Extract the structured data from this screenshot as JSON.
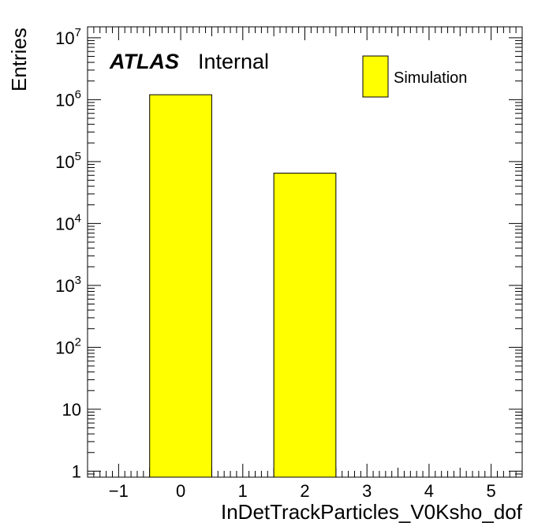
{
  "chart_data": {
    "type": "bar",
    "xlabel": "InDetTrackParticles_V0Ksho_dof",
    "ylabel": "Entries",
    "xlim": [
      -1.5,
      5.5
    ],
    "ylim": [
      0.8,
      15000000
    ],
    "log_y": true,
    "x_ticks": [
      "−1",
      "0",
      "1",
      "2",
      "3",
      "4",
      "5"
    ],
    "y_ticks": [
      {
        "label": "1",
        "sup": ""
      },
      {
        "label": "10",
        "sup": ""
      },
      {
        "label": "10",
        "sup": "2"
      },
      {
        "label": "10",
        "sup": "3"
      },
      {
        "label": "10",
        "sup": "4"
      },
      {
        "label": "10",
        "sup": "5"
      },
      {
        "label": "10",
        "sup": "6"
      },
      {
        "label": "10",
        "sup": "7"
      }
    ],
    "bins": [
      {
        "low": -0.5,
        "high": 0.5,
        "value": 1200000
      },
      {
        "low": 1.5,
        "high": 2.5,
        "value": 65000
      }
    ],
    "series": [
      {
        "name": "Simulation",
        "color": "#ffff00"
      }
    ],
    "legend_position": "top-right",
    "grid": false
  },
  "annotation": {
    "experiment": "ATLAS",
    "status": "Internal"
  },
  "colors": {
    "bar_fill": "#ffff00",
    "bar_edge": "#000000",
    "frame": "#000000"
  }
}
